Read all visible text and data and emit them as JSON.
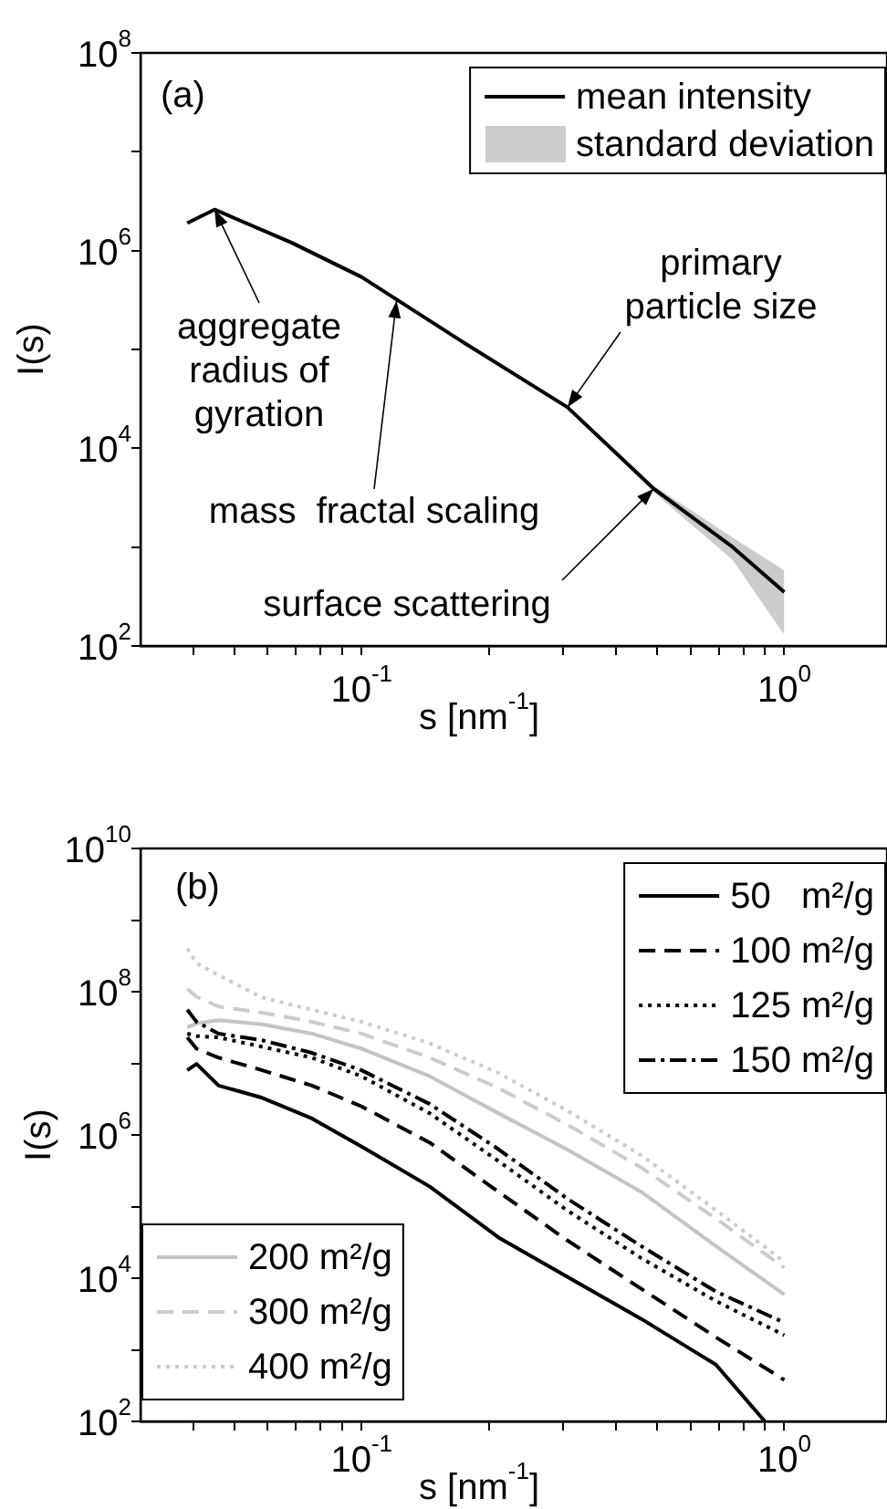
{
  "chart_data": [
    {
      "type": "line",
      "xlabel": "s [nm$^{-1}$]",
      "ylabel": "I(s)",
      "log": "xy",
      "grid": false,
      "legend": "top right",
      "marker": "none",
      "xlim": [
        0.03,
        1.75
      ],
      "ylim": [
        100,
        100000000
      ],
      "xticks": [
        {
          "value": 0.04,
          "label": null
        },
        {
          "value": 0.05,
          "label": null
        },
        {
          "value": 0.06,
          "label": null
        },
        {
          "value": 0.07,
          "label": null
        },
        {
          "value": 0.08,
          "label": null
        },
        {
          "value": 0.09,
          "label": null
        },
        {
          "value": 0.1,
          "label": "10$^{-1}$"
        },
        {
          "value": 0.2,
          "label": null
        },
        {
          "value": 0.3,
          "label": null
        },
        {
          "value": 0.4,
          "label": null
        },
        {
          "value": 0.5,
          "label": null
        },
        {
          "value": 0.6,
          "label": null
        },
        {
          "value": 0.7,
          "label": null
        },
        {
          "value": 0.8,
          "label": null
        },
        {
          "value": 0.9,
          "label": null
        },
        {
          "value": 1,
          "label": "10$^{0}$"
        }
      ],
      "yticks": [
        {
          "value": 100,
          "label": "10$^{2}$"
        },
        {
          "value": 1000,
          "label": null
        },
        {
          "value": 10000,
          "label": "10$^{4}$"
        },
        {
          "value": 100000,
          "label": null
        },
        {
          "value": 1000000,
          "label": "10$^{6}$"
        },
        {
          "value": 10000000,
          "label": null
        },
        {
          "value": 100000000,
          "label": "10$^{8}$"
        }
      ],
      "x": [
        0.0387,
        0.0449,
        0.0684,
        0.1,
        0.168,
        0.307,
        0.491,
        0.755,
        1
      ],
      "series": [
        {
          "name": "mean intensity",
          "color": "#000000",
          "line_style": "solid",
          "values": [
            1900000,
            2600000,
            1200000,
            540000,
            130000,
            26000,
            3900,
            1000,
            350
          ],
          "lower": [
            1900000,
            2600000,
            1200000,
            540000,
            130000,
            26000,
            3600,
            740,
            130
          ],
          "upper": [
            1900000,
            2600000,
            1200000,
            540000,
            130000,
            26000,
            4200,
            1250,
            580
          ]
        }
      ],
      "annotations": [
        "(a)",
        "standard deviation",
        {
          "text": "aggregate\nradius of\ngyration",
          "x": 0.0449,
          "y": 2600000
        },
        {
          "text": "mass  fractal scaling",
          "x": 0.121,
          "y": 310000
        },
        {
          "text": "primary\nparticle size",
          "x": 0.307,
          "y": 26000
        },
        {
          "text": "surface scattering",
          "x": 0.491,
          "y": 3900
        }
      ]
    },
    {
      "type": "line",
      "xlabel": "s [nm$^{-1}$]",
      "ylabel": "I(s)",
      "log": "xy",
      "grid": false,
      "marker": "none",
      "legend": [
        "top right",
        "bottom left"
      ],
      "xlim": [
        0.03,
        1.75
      ],
      "ylim": [
        100,
        10000000000
      ],
      "xticks": [
        {
          "value": 0.04,
          "label": null
        },
        {
          "value": 0.05,
          "label": null
        },
        {
          "value": 0.06,
          "label": null
        },
        {
          "value": 0.07,
          "label": null
        },
        {
          "value": 0.08,
          "label": null
        },
        {
          "value": 0.09,
          "label": null
        },
        {
          "value": 0.1,
          "label": "10$^{-1}$"
        },
        {
          "value": 0.2,
          "label": null
        },
        {
          "value": 0.3,
          "label": null
        },
        {
          "value": 0.4,
          "label": null
        },
        {
          "value": 0.5,
          "label": null
        },
        {
          "value": 0.6,
          "label": null
        },
        {
          "value": 0.7,
          "label": null
        },
        {
          "value": 0.8,
          "label": null
        },
        {
          "value": 0.9,
          "label": null
        },
        {
          "value": 1,
          "label": "10$^{0}$"
        }
      ],
      "yticks": [
        {
          "value": 100,
          "label": "10$^{2}$"
        },
        {
          "value": 1000,
          "label": null
        },
        {
          "value": 10000,
          "label": "10$^{4}$"
        },
        {
          "value": 100000,
          "label": null
        },
        {
          "value": 1000000,
          "label": "10$^{6}$"
        },
        {
          "value": 10000000,
          "label": null
        },
        {
          "value": 100000000,
          "label": "10$^{8}$"
        },
        {
          "value": 1000000000,
          "label": null
        },
        {
          "value": 10000000000,
          "label": "10$^{10}$"
        }
      ],
      "x": [
        0.0387,
        0.0407,
        0.0459,
        0.0582,
        0.0763,
        0.1,
        0.145,
        0.211,
        0.306,
        0.459,
        0.689,
        1
      ],
      "series": [
        {
          "name": "50   m²/g",
          "color": "#000000",
          "line_style": "solid",
          "x": [
            0.0387,
            0.0407,
            0.0459,
            0.0582,
            0.0763,
            0.1,
            0.145,
            0.211,
            0.306,
            0.459,
            0.689,
            0.9
          ],
          "values": [
            8000000,
            9800000,
            4900000,
            3300000,
            1700000,
            690000,
            190000,
            37000,
            10500,
            2700,
            620,
            100
          ]
        },
        {
          "name": "100 m²/g",
          "color": "#000000",
          "line_style": "dashed",
          "values": [
            23000000,
            16000000,
            12000000,
            8000000,
            4900000,
            2500000,
            780000,
            160000,
            34000,
            7100,
            1500,
            380
          ]
        },
        {
          "name": "125 m²/g",
          "color": "#000000",
          "line_style": "dotted",
          "values": [
            26000000,
            24000000,
            23000000,
            17000000,
            12000000,
            6600000,
            2000000,
            430000,
            89000,
            19000,
            4800,
            1600
          ]
        },
        {
          "name": "150 m²/g",
          "color": "#000000",
          "line_style": "dashdot",
          "values": [
            56000000,
            38000000,
            26000000,
            21000000,
            14000000,
            8000000,
            2700000,
            630000,
            130000,
            28000,
            6500,
            2400
          ]
        },
        {
          "name": "200 m²/g",
          "color": "#c4c4c4",
          "line_style": "solid",
          "values": [
            32000000,
            36000000,
            40000000,
            35000000,
            26000000,
            16000000,
            6600000,
            2000000,
            630000,
            160000,
            28000,
            5900
          ]
        },
        {
          "name": "300 m²/g",
          "color": "#cccccc",
          "line_style": "dashed",
          "values": [
            110000000,
            85000000,
            62000000,
            51000000,
            38000000,
            26000000,
            12000000,
            4500000,
            1400000,
            350000,
            68000,
            14000
          ]
        },
        {
          "name": "400 m²/g",
          "color": "#cccccc",
          "line_style": "dotted",
          "values": [
            400000000,
            250000000,
            170000000,
            83000000,
            56000000,
            38000000,
            19000000,
            7300000,
            2200000,
            520000,
            89000,
            17000
          ]
        }
      ],
      "annotations": [
        "(b)"
      ]
    }
  ]
}
